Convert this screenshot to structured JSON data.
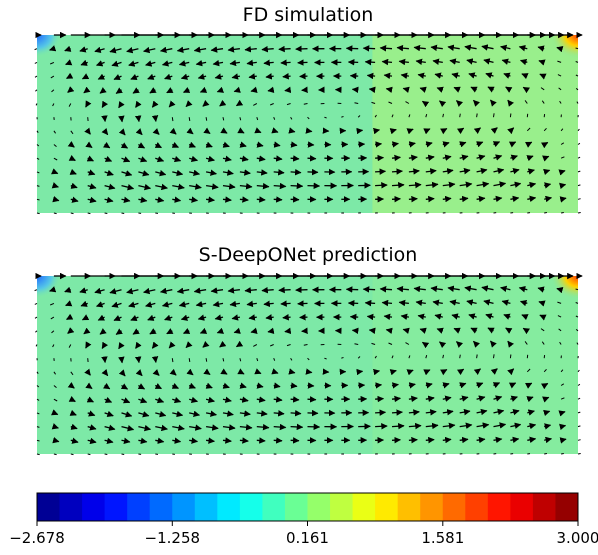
{
  "chart_data": [
    {
      "type": "heatmap",
      "variant": "pressure field with velocity vectors (quiver)",
      "title": "FD simulation",
      "field": "near-uniform (~0.2), low (blue) at top-left corner, high (red) at top-right corner, slightly higher (~0.5) in right half",
      "vectors": "clockwise recirculating flow; strongest along top lid (rightward), return flow leftward through middle",
      "colors": {
        "base": "#7de9a7",
        "right_half": "#9cf08a",
        "top_left": "#1f6bff",
        "top_right": "#ff3a00"
      }
    },
    {
      "type": "heatmap",
      "variant": "pressure field with velocity vectors (quiver)",
      "title": "S-DeepONet prediction",
      "field": "near-uniform (~0.2), low (blue) at top-left corner, high (red) at top-right corner",
      "vectors": "clockwise recirculating flow; strongest along top lid (rightward), return flow leftward through middle",
      "colors": {
        "base": "#7de9a7",
        "right_half": "#86ec9e",
        "top_left": "#1f6bff",
        "top_right": "#ff3a00"
      }
    }
  ],
  "colorbar": {
    "type": "colorbar",
    "min": -2.678,
    "max": 3.0,
    "tick_values": [
      -2.678,
      -1.258,
      0.161,
      1.581,
      3.0
    ],
    "tick_labels": [
      "−2.678",
      "−1.258",
      "0.161",
      "1.581",
      "3.000"
    ],
    "num_levels": 24,
    "colormap": "jet"
  }
}
